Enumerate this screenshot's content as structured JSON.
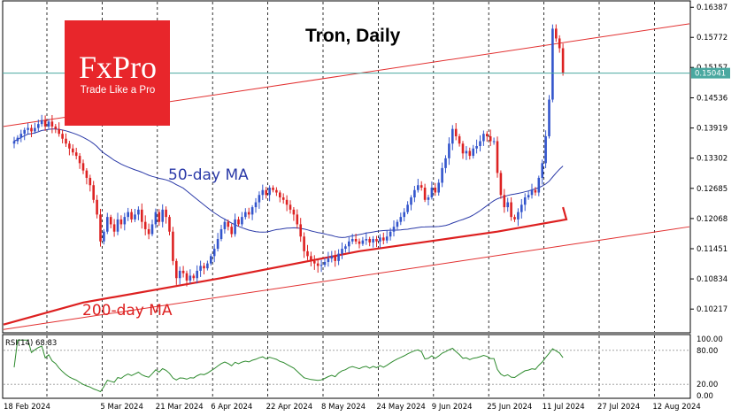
{
  "chart_data": [
    {
      "type": "candlestick",
      "title": "Tron, Daily",
      "ylim": [
        0.0975,
        0.165
      ],
      "y_ticks": [
        "0.16387",
        "0.15772",
        "0.15157",
        "0.14536",
        "0.13919",
        "0.13302",
        "0.12685",
        "0.12068",
        "0.11451",
        "0.10834",
        "0.10217"
      ],
      "x_ticks": [
        "18 Feb 2024",
        "5 Mar 2024",
        "21 Mar 2024",
        "6 Apr 2024",
        "22 Apr 2024",
        "8 May 2024",
        "24 May 2024",
        "9 Jun 2024",
        "25 Jun 2024",
        "11 Jul 2024",
        "27 Jul 2024",
        "12 Aug 2024"
      ],
      "x_tick_days": [
        0,
        16,
        32,
        48,
        64,
        80,
        96,
        112,
        128,
        144,
        160,
        176
      ],
      "current_price": {
        "label": "0.15041",
        "value": 0.15041,
        "color": "#4aa8a0"
      },
      "closes": [
        0.1365,
        0.1372,
        0.138,
        0.1388,
        0.1392,
        0.1385,
        0.1392,
        0.14,
        0.1408,
        0.1395,
        0.1405,
        0.1395,
        0.139,
        0.138,
        0.137,
        0.136,
        0.135,
        0.1342,
        0.1335,
        0.132,
        0.1305,
        0.129,
        0.1275,
        0.1245,
        0.1215,
        0.116,
        0.118,
        0.121,
        0.1195,
        0.118,
        0.1205,
        0.1195,
        0.121,
        0.122,
        0.1205,
        0.1215,
        0.1225,
        0.12,
        0.1185,
        0.1175,
        0.1195,
        0.122,
        0.12,
        0.1225,
        0.121,
        0.118,
        0.112,
        0.1085,
        0.11,
        0.1095,
        0.108,
        0.109,
        0.1085,
        0.11,
        0.111,
        0.1105,
        0.1115,
        0.113,
        0.1145,
        0.1165,
        0.1185,
        0.12,
        0.119,
        0.1175,
        0.1205,
        0.1195,
        0.121,
        0.122,
        0.1215,
        0.123,
        0.124,
        0.1255,
        0.1265,
        0.1255,
        0.127,
        0.1265,
        0.126,
        0.125,
        0.1245,
        0.1235,
        0.1225,
        0.1215,
        0.1195,
        0.117,
        0.114,
        0.113,
        0.112,
        0.1115,
        0.111,
        0.1112,
        0.1118,
        0.1125,
        0.113,
        0.112,
        0.1135,
        0.1145,
        0.115,
        0.116,
        0.1165,
        0.116,
        0.1155,
        0.1162,
        0.1165,
        0.1158,
        0.1165,
        0.116,
        0.1168,
        0.1162,
        0.117,
        0.118,
        0.119,
        0.12,
        0.121,
        0.122,
        0.1235,
        0.125,
        0.1265,
        0.1275,
        0.127,
        0.1245,
        0.125,
        0.127,
        0.126,
        0.128,
        0.131,
        0.133,
        0.136,
        0.139,
        0.1375,
        0.136,
        0.134,
        0.1345,
        0.1335,
        0.135,
        0.1355,
        0.1365,
        0.138,
        0.1375,
        0.1365,
        0.1365,
        0.13,
        0.1255,
        0.123,
        0.124,
        0.121,
        0.1205,
        0.122,
        0.1235,
        0.125,
        0.1255,
        0.1265,
        0.126,
        0.129,
        0.132,
        0.1375,
        0.145,
        0.1595,
        0.1575,
        0.1555,
        0.1505
      ],
      "ma_50": {
        "label": "50-day MA",
        "color": "#2b3aa8"
      },
      "ma_200": {
        "label": "200-day MA",
        "color": "#dd2020"
      },
      "channel_color": "#e23030",
      "up_color": "#3355cc",
      "down_color": "#dd2222"
    },
    {
      "type": "line",
      "title": "RSI(14) 68.83",
      "ylim": [
        0,
        100
      ],
      "y_ticks": [
        "100.00",
        "80.00",
        "20.00",
        "0.00"
      ],
      "levels": [
        80,
        20
      ],
      "color": "#2e8b2e"
    }
  ],
  "logo": {
    "brand": "FxPro",
    "tagline": "Trade Like a Pro",
    "color": "#e8262b"
  }
}
